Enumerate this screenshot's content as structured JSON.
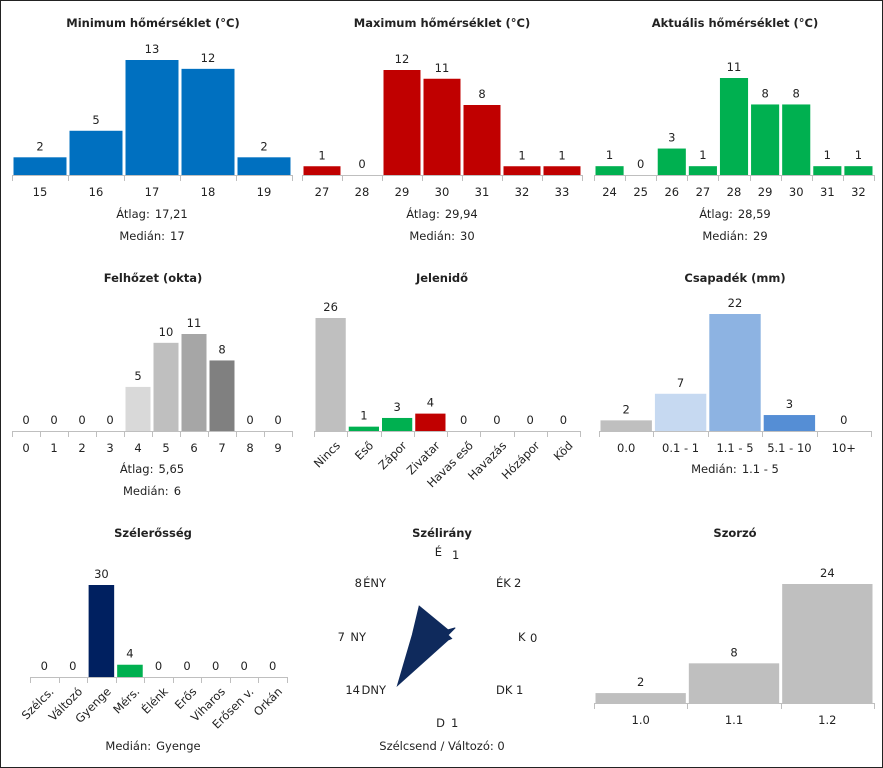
{
  "chart_data": [
    {
      "id": "min",
      "type": "bar",
      "title": "Minimum hőmérséklet (°C)",
      "categories": [
        "15",
        "16",
        "17",
        "18",
        "19"
      ],
      "values": [
        2,
        5,
        13,
        12,
        2
      ],
      "colors": [
        "#0070c0",
        "#0070c0",
        "#0070c0",
        "#0070c0",
        "#0070c0"
      ],
      "stats": [
        {
          "label": "Átlag:",
          "value": "17,21"
        },
        {
          "label": "Medián:",
          "value": "17"
        }
      ]
    },
    {
      "id": "max",
      "type": "bar",
      "title": "Maximum hőmérséklet (°C)",
      "categories": [
        "27",
        "28",
        "29",
        "30",
        "31",
        "32",
        "33"
      ],
      "values": [
        1,
        0,
        12,
        11,
        8,
        1,
        1
      ],
      "colors": [
        "#c00000",
        "#c00000",
        "#c00000",
        "#c00000",
        "#c00000",
        "#c00000",
        "#c00000"
      ],
      "stats": [
        {
          "label": "Átlag:",
          "value": "29,94"
        },
        {
          "label": "Medián:",
          "value": "30"
        }
      ]
    },
    {
      "id": "act",
      "type": "bar",
      "title": "Aktuális hőmérséklet (°C)",
      "categories": [
        "24",
        "25",
        "26",
        "27",
        "28",
        "29",
        "30",
        "31",
        "32"
      ],
      "values": [
        1,
        0,
        3,
        1,
        11,
        8,
        8,
        1,
        1
      ],
      "colors": [
        "#00b050",
        "#00b050",
        "#00b050",
        "#00b050",
        "#00b050",
        "#00b050",
        "#00b050",
        "#00b050",
        "#00b050"
      ],
      "stats": [
        {
          "label": "Átlag:",
          "value": "28,59"
        },
        {
          "label": "Medián:",
          "value": "29"
        }
      ]
    },
    {
      "id": "cloud",
      "type": "bar",
      "title": "Felhőzet (okta)",
      "categories": [
        "0",
        "1",
        "2",
        "3",
        "4",
        "5",
        "6",
        "7",
        "8",
        "9"
      ],
      "values": [
        0,
        0,
        0,
        0,
        5,
        10,
        11,
        8,
        0,
        0
      ],
      "colors": [
        "#d9d9d9",
        "#d9d9d9",
        "#d9d9d9",
        "#d9d9d9",
        "#d9d9d9",
        "#bfbfbf",
        "#a6a6a6",
        "#808080",
        "#808080",
        "#808080"
      ],
      "stats": [
        {
          "label": "Átlag:",
          "value": "5,65"
        },
        {
          "label": "Medián:",
          "value": "6"
        }
      ]
    },
    {
      "id": "weather",
      "type": "bar",
      "title": "Jelenidő",
      "categories": [
        "Nincs",
        "Eső",
        "Zápor",
        "Zivatar",
        "Havas eső",
        "Havazás",
        "Hózápor",
        "Köd"
      ],
      "values": [
        26,
        1,
        3,
        4,
        0,
        0,
        0,
        0
      ],
      "colors": [
        "#bfbfbf",
        "#00b050",
        "#00b050",
        "#c00000",
        "#bfbfbf",
        "#bfbfbf",
        "#bfbfbf",
        "#bfbfbf"
      ],
      "stats": []
    },
    {
      "id": "precip",
      "type": "bar",
      "title": "Csapadék (mm)",
      "categories": [
        "0.0",
        "0.1 - 1",
        "1.1 - 5",
        "5.1 - 10",
        "10+"
      ],
      "values": [
        2,
        7,
        22,
        3,
        0
      ],
      "colors": [
        "#bfbfbf",
        "#c6d9f1",
        "#8db3e2",
        "#558ed5",
        "#558ed5"
      ],
      "stats": [
        {
          "label": "Medián:",
          "value": "1.1 - 5"
        }
      ]
    },
    {
      "id": "wind",
      "type": "bar",
      "title": "Szélerősség",
      "categories": [
        "Szélcs.",
        "Változó",
        "Gyenge",
        "Mérs.",
        "Élénk",
        "Erős",
        "Viharos",
        "Erősen v.",
        "Orkán"
      ],
      "values": [
        0,
        0,
        30,
        4,
        0,
        0,
        0,
        0,
        0
      ],
      "colors": [
        "#bfbfbf",
        "#bfbfbf",
        "#002060",
        "#00b050",
        "#bfbfbf",
        "#bfbfbf",
        "#bfbfbf",
        "#bfbfbf",
        "#bfbfbf"
      ],
      "stats": [
        {
          "label": "Medián:",
          "value": "Gyenge"
        }
      ]
    },
    {
      "id": "dir",
      "type": "radar",
      "title": "Szélirány",
      "directions": [
        {
          "name": "É",
          "count": 1
        },
        {
          "name": "ÉK",
          "count": 2
        },
        {
          "name": "K",
          "count": 0
        },
        {
          "name": "DK",
          "count": 1
        },
        {
          "name": "D",
          "count": 1
        },
        {
          "name": "DNY",
          "count": 14
        },
        {
          "name": "NY",
          "count": 7
        },
        {
          "name": "ÉNY",
          "count": 8
        }
      ],
      "color": "#0f2a5c",
      "footer": "Szélcsend / Változó: 0"
    },
    {
      "id": "mult",
      "type": "bar",
      "title": "Szorzó",
      "categories": [
        "1.0",
        "1.1",
        "1.2"
      ],
      "values": [
        2,
        8,
        24
      ],
      "colors": [
        "#bfbfbf",
        "#bfbfbf",
        "#bfbfbf"
      ],
      "stats": []
    }
  ]
}
